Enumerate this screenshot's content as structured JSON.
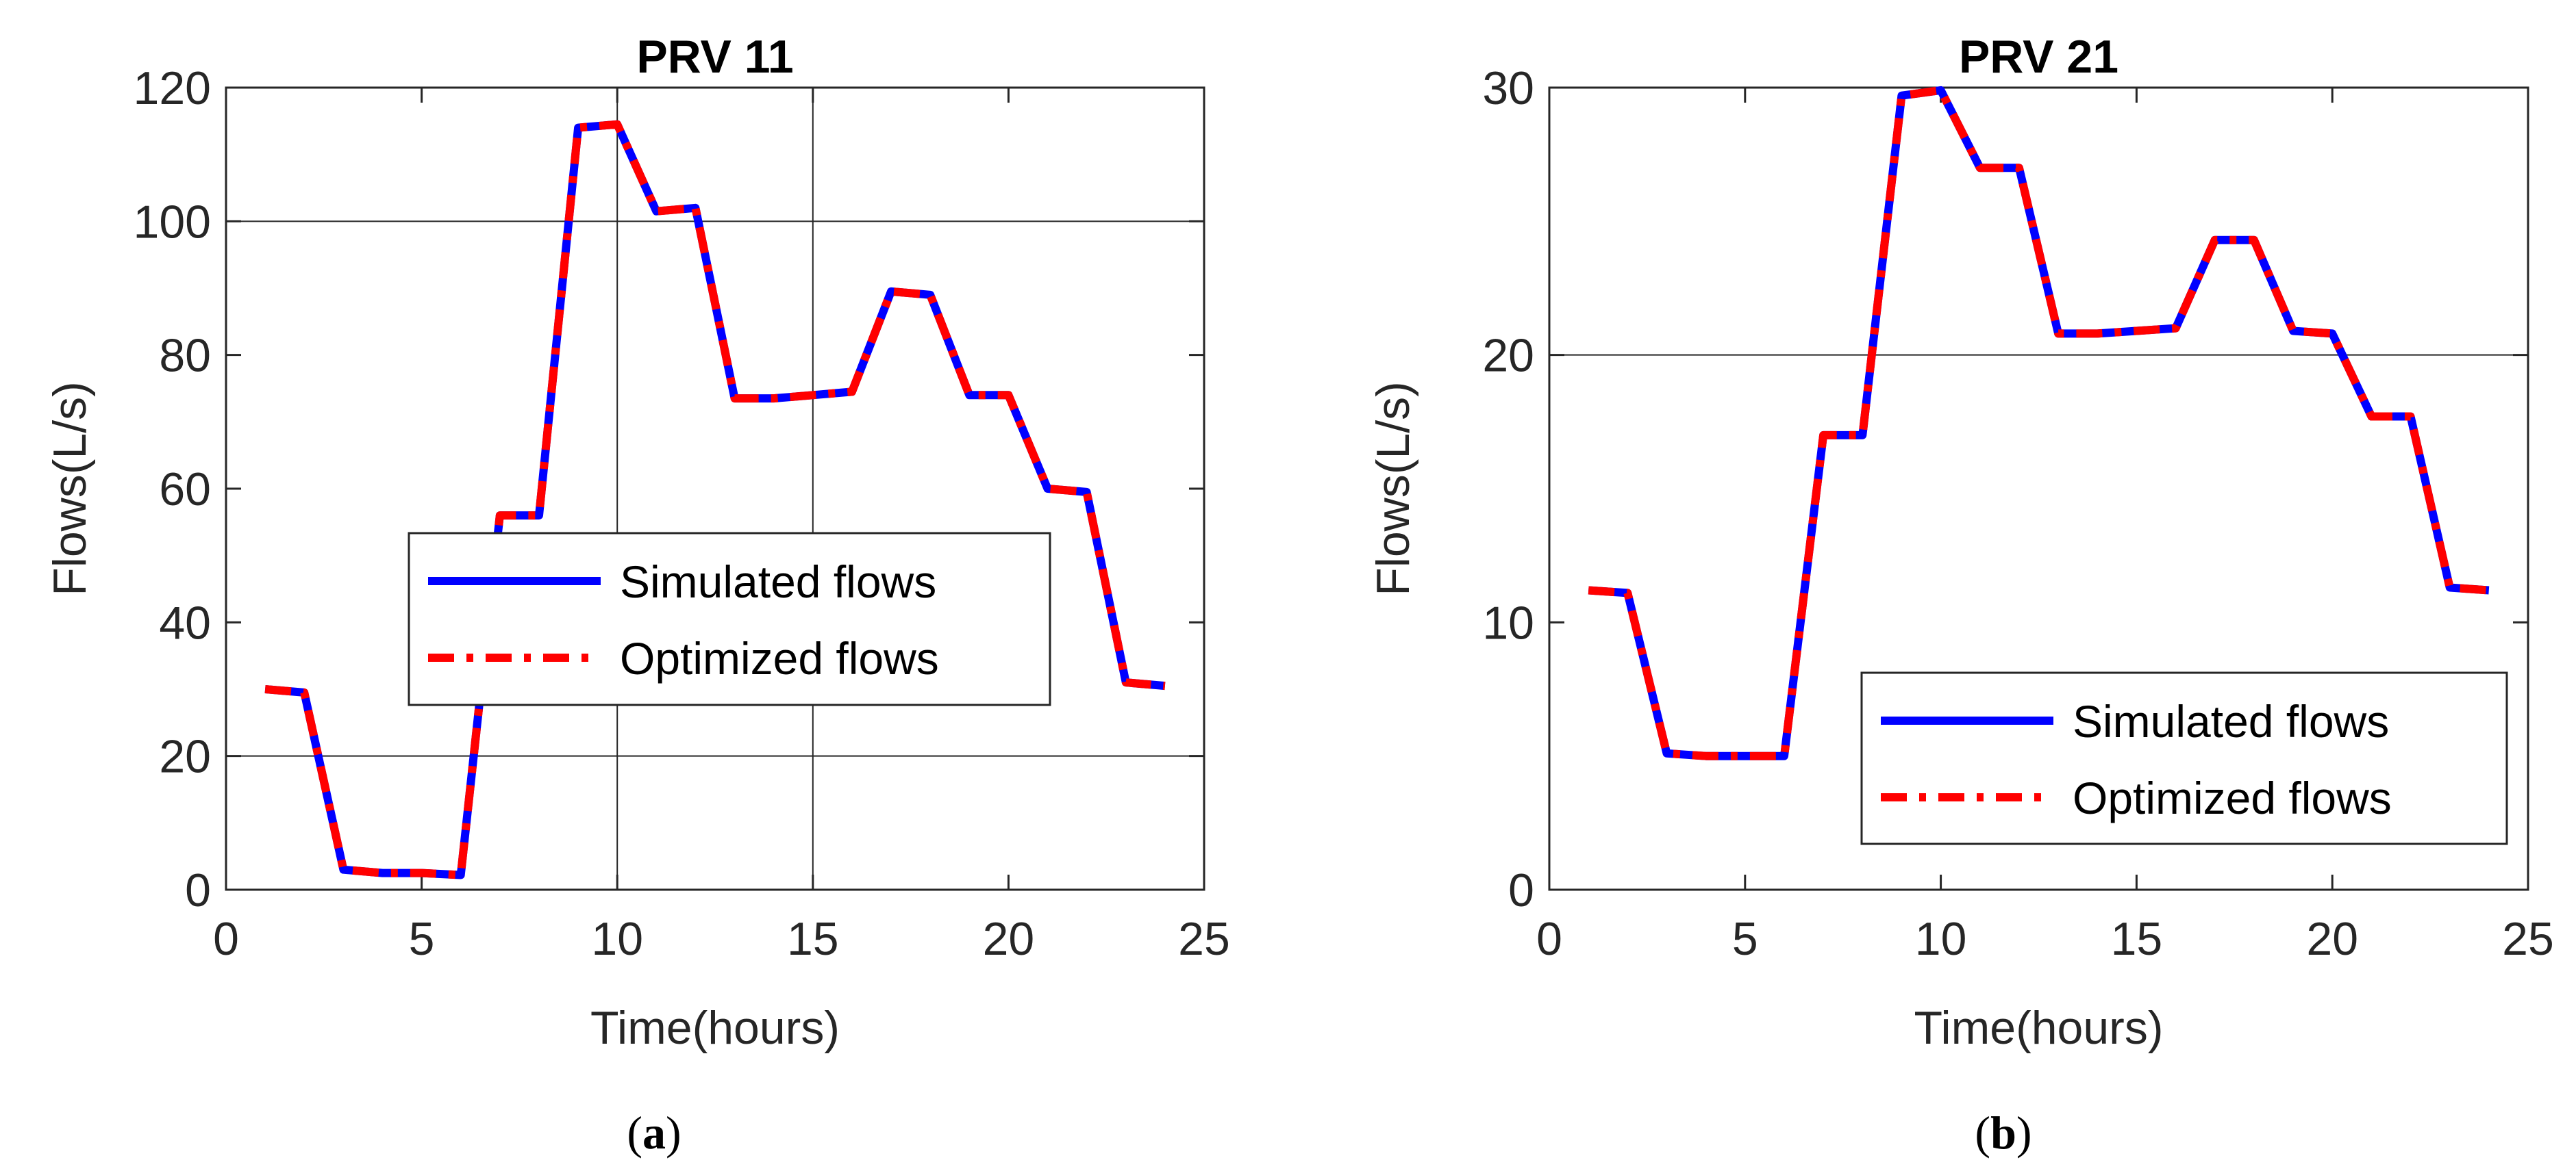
{
  "chart_data": [
    {
      "type": "line",
      "panel_label": "a",
      "title": "PRV 11",
      "xlabel": "Time(hours)",
      "ylabel": "Flows(L/s)",
      "xlim": [
        0,
        25
      ],
      "ylim": [
        0,
        120
      ],
      "xticks": [
        0,
        5,
        10,
        15,
        20,
        25
      ],
      "yticks": [
        0,
        20,
        40,
        60,
        80,
        100,
        120
      ],
      "xtick_labels": [
        "0",
        "5",
        "10",
        "15",
        "20",
        "25"
      ],
      "ytick_labels": [
        "0",
        "20",
        "40",
        "60",
        "80",
        "100",
        "120"
      ],
      "grid": {
        "x": [
          10,
          15
        ],
        "y": [
          20,
          100
        ]
      },
      "legend": {
        "position": "center-right"
      },
      "x": [
        1,
        2,
        3,
        4,
        5,
        6,
        7,
        8,
        9,
        10,
        11,
        12,
        13,
        14,
        15,
        16,
        17,
        18,
        19,
        20,
        21,
        22,
        23,
        24
      ],
      "series": [
        {
          "name": "Simulated flows",
          "color": "#0000ff",
          "style": "solid",
          "values": [
            30,
            29.5,
            3,
            2.5,
            2.5,
            2.2,
            56,
            56,
            114,
            114.5,
            101.5,
            102,
            73.5,
            73.5,
            74,
            74.5,
            89.5,
            89,
            74,
            74,
            60,
            59.5,
            31,
            30.5
          ]
        },
        {
          "name": "Optimized flows",
          "color": "#ff0000",
          "style": "dashdot",
          "values": [
            30,
            29.5,
            3,
            2.5,
            2.5,
            2.2,
            56,
            56,
            114,
            114.5,
            101.5,
            102,
            73.5,
            73.5,
            74,
            74.5,
            89.5,
            89,
            74,
            74,
            60,
            59.5,
            31,
            30.5
          ]
        }
      ]
    },
    {
      "type": "line",
      "panel_label": "b",
      "title": "PRV 21",
      "xlabel": "Time(hours)",
      "ylabel": "Flows(L/s)",
      "xlim": [
        0,
        25
      ],
      "ylim": [
        0,
        30
      ],
      "xticks": [
        0,
        5,
        10,
        15,
        20,
        25
      ],
      "yticks": [
        0,
        10,
        20,
        30
      ],
      "xtick_labels": [
        "0",
        "5",
        "10",
        "15",
        "20",
        "25"
      ],
      "ytick_labels": [
        "0",
        "10",
        "20",
        "30"
      ],
      "grid": {
        "x": [],
        "y": [
          20
        ]
      },
      "legend": {
        "position": "lower-right"
      },
      "x": [
        1,
        2,
        3,
        4,
        5,
        6,
        7,
        8,
        9,
        10,
        11,
        12,
        13,
        14,
        15,
        16,
        17,
        18,
        19,
        20,
        21,
        22,
        23,
        24
      ],
      "series": [
        {
          "name": "Simulated flows",
          "color": "#0000ff",
          "style": "solid",
          "values": [
            11.2,
            11.1,
            5.1,
            5.0,
            5.0,
            5.0,
            17,
            17,
            29.7,
            29.9,
            27,
            27,
            20.8,
            20.8,
            20.9,
            21,
            24.3,
            24.3,
            20.9,
            20.8,
            17.7,
            17.7,
            11.3,
            11.2
          ]
        },
        {
          "name": "Optimized flows",
          "color": "#ff0000",
          "style": "dashdot",
          "values": [
            11.2,
            11.1,
            5.1,
            5.0,
            5.0,
            5.0,
            17,
            17,
            29.7,
            29.9,
            27,
            27,
            20.8,
            20.8,
            20.9,
            21,
            24.3,
            24.3,
            20.9,
            20.8,
            17.7,
            17.7,
            11.3,
            11.2
          ]
        }
      ]
    }
  ]
}
